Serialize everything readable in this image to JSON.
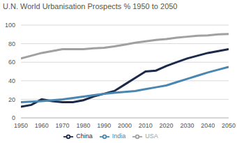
{
  "chart_data": {
    "type": "line",
    "title": "U.N. World Urbanisation Prospects % 1950 to 2050",
    "x": [
      1950,
      1955,
      1960,
      1965,
      1970,
      1975,
      1980,
      1985,
      1990,
      1995,
      2000,
      2005,
      2010,
      2015,
      2020,
      2025,
      2030,
      2035,
      2040,
      2045,
      2050
    ],
    "series": [
      {
        "name": "USA",
        "color": "#a0a0a0",
        "values": [
          64,
          67,
          70,
          72,
          74,
          74,
          74,
          75,
          75.5,
          77,
          79,
          81,
          82.5,
          84,
          85,
          86.5,
          87.5,
          88.5,
          89,
          90,
          90.5
        ]
      },
      {
        "name": "China",
        "color": "#1b2a4a",
        "values": [
          12,
          14,
          20,
          18,
          17,
          17,
          19,
          23,
          26,
          29,
          36,
          43,
          50,
          51,
          56,
          60,
          64,
          67,
          70,
          72,
          74
        ]
      },
      {
        "name": "India",
        "color": "#4a87b0",
        "values": [
          17,
          17.5,
          18,
          19,
          20,
          21.5,
          23,
          24.5,
          26,
          27,
          28,
          29,
          31,
          33,
          35,
          38.5,
          42,
          45.5,
          49,
          52,
          55
        ]
      }
    ],
    "xlim": [
      1950,
      2050
    ],
    "xticks": [
      1950,
      1960,
      1970,
      1980,
      1990,
      2000,
      2010,
      2020,
      2030,
      2040,
      2050
    ],
    "ylim": [
      0,
      100
    ],
    "yticks": [
      0,
      20,
      40,
      60,
      80,
      100
    ],
    "grid": true,
    "legend": "bottom"
  }
}
